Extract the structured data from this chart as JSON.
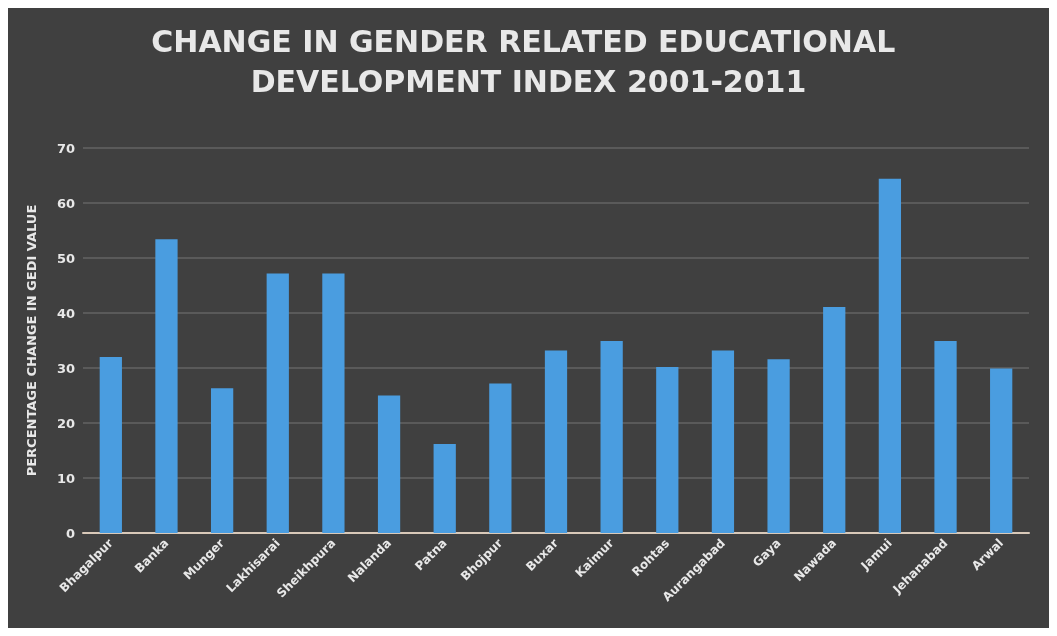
{
  "chart_data": {
    "type": "bar",
    "title": "CHANGE IN GENDER RELATED EDUCATIONAL DEVELOPMENT INDEX 2001-2011",
    "ylabel": "PERCENTAGE CHANGE IN GEDI VALUE",
    "categories": [
      "Bhagalpur",
      "Banka",
      "Munger",
      "Lakhisarai",
      "Sheikhpura",
      "Nalanda",
      "Patna",
      "Bhojpur",
      "Buxar",
      "Kaimur",
      "Rohtas",
      "Aurangabad",
      "Gaya",
      "Nawada",
      "Jamui",
      "Jehanabad",
      "Arwal"
    ],
    "values": [
      32,
      53.4,
      26.3,
      47.2,
      47.2,
      25,
      16.2,
      27.2,
      33.2,
      34.9,
      30.2,
      33.2,
      31.6,
      41.1,
      64.4,
      34.9,
      29.9
    ],
    "color": "#4a9de0",
    "ylim": [
      0,
      70
    ],
    "yticks": [
      0,
      10,
      20,
      30,
      40,
      50,
      60,
      70
    ],
    "grid": "y"
  }
}
